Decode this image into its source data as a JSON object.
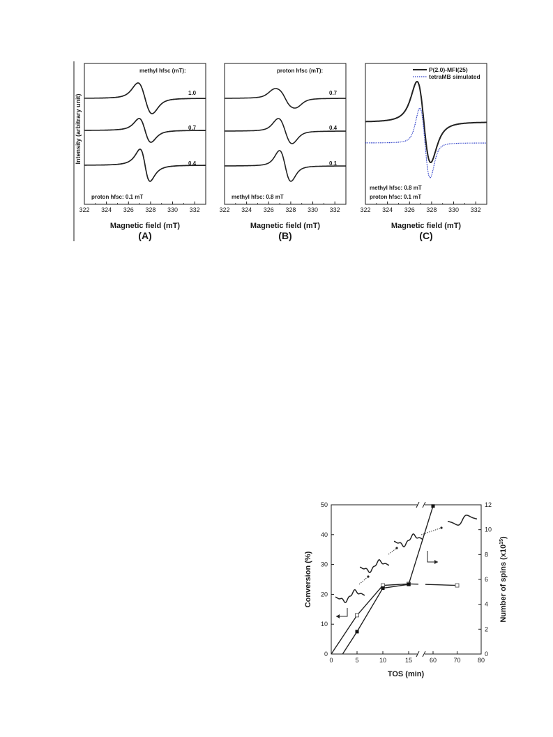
{
  "figure_top": {
    "y_axis_label": "Intensity (arbitrary unit)",
    "panels": [
      {
        "tag": "(A)",
        "header": "methyl hfsc (mT):",
        "footer": [
          "proton hfsc: 0.1 mT"
        ],
        "xlabel": "Magnetic field (mT)",
        "traces": [
          {
            "label": "1.0"
          },
          {
            "label": "0.7"
          },
          {
            "label": "0.4"
          }
        ]
      },
      {
        "tag": "(B)",
        "header": "proton hfsc (mT):",
        "footer": [
          "methyl hfsc: 0.8 mT"
        ],
        "xlabel": "Magnetic field (mT)",
        "traces": [
          {
            "label": "0.7"
          },
          {
            "label": "0.4"
          },
          {
            "label": "0.1"
          }
        ]
      },
      {
        "tag": "(C)",
        "header": "",
        "footer": [
          "methyl hfsc: 0.8 mT",
          "proton hfsc: 0.1 mT"
        ],
        "xlabel": "Magnetic field (mT)",
        "legend": [
          "P(2.0)-MFI(25)",
          "tetraMB simulated"
        ]
      }
    ]
  },
  "chart_data": [
    {
      "type": "line",
      "panel": "(A)",
      "xlabel": "Magnetic field (mT)",
      "ylabel": "Intensity (arbitrary unit)",
      "xlim": [
        322,
        333
      ],
      "xticks": [
        322,
        324,
        326,
        328,
        330,
        332
      ],
      "series": [
        {
          "name": "1.0",
          "center": 327.5,
          "linewidth": 0.55,
          "methyl_hfsc": 1.0,
          "proton_hfsc": 0.1
        },
        {
          "name": "0.7",
          "center": 327.5,
          "linewidth": 0.6,
          "methyl_hfsc": 0.7,
          "proton_hfsc": 0.1
        },
        {
          "name": "0.4",
          "center": 327.5,
          "linewidth": 0.65,
          "methyl_hfsc": 0.4,
          "proton_hfsc": 0.1
        }
      ]
    },
    {
      "type": "line",
      "panel": "(B)",
      "xlabel": "Magnetic field (mT)",
      "xlim": [
        322,
        333
      ],
      "xticks": [
        322,
        324,
        326,
        328,
        330,
        332
      ],
      "series": [
        {
          "name": "0.7",
          "center": 327.5,
          "linewidth": 0.45,
          "methyl_hfsc": 0.8,
          "proton_hfsc": 0.7
        },
        {
          "name": "0.4",
          "center": 327.5,
          "linewidth": 0.45,
          "methyl_hfsc": 0.8,
          "proton_hfsc": 0.4
        },
        {
          "name": "0.1",
          "center": 327.5,
          "linewidth": 0.45,
          "methyl_hfsc": 0.8,
          "proton_hfsc": 0.1
        }
      ]
    },
    {
      "type": "line",
      "panel": "(C)",
      "xlabel": "Magnetic field (mT)",
      "xlim": [
        322,
        333
      ],
      "xticks": [
        322,
        324,
        326,
        328,
        330,
        332
      ],
      "series": [
        {
          "name": "P(2.0)-MFI(25)",
          "style": "solid",
          "color": "#222222"
        },
        {
          "name": "tetraMB simulated",
          "style": "dotted",
          "color": "#2a3cc8"
        }
      ]
    },
    {
      "type": "line",
      "panel": "conversion-vs-tos",
      "xlabel": "TOS (min)",
      "ylabel": "Conversion (%)",
      "ylabel_right": "Number of spins (x10",
      "ylabel_right_sup": "15",
      "ylabel_right_close": ")",
      "xticks": [
        "0",
        "5",
        "10",
        "15",
        "60",
        "70",
        "80"
      ],
      "xlim": [
        0,
        80
      ],
      "axis_break": [
        15,
        60
      ],
      "ylim": [
        0,
        50
      ],
      "yticks_left": [
        0,
        10,
        20,
        30,
        40,
        50
      ],
      "ylim_right": [
        0,
        12
      ],
      "yticks_right": [
        0,
        2,
        4,
        6,
        8,
        10,
        12
      ],
      "series": [
        {
          "name": "Conversion",
          "axis": "left",
          "marker": "open-square",
          "x": [
            5,
            10,
            15,
            70
          ],
          "y": [
            13,
            23,
            23.5,
            23
          ]
        },
        {
          "name": "Number of spins",
          "axis": "right",
          "marker": "filled-square",
          "x": [
            2.2,
            5,
            10,
            15,
            60
          ],
          "y": [
            0,
            1.8,
            5.3,
            5.6,
            11.9
          ]
        }
      ]
    }
  ],
  "colors": {
    "axis": "#1a1a1a",
    "trace": "#222222",
    "simulated": "#2a3cc8"
  }
}
